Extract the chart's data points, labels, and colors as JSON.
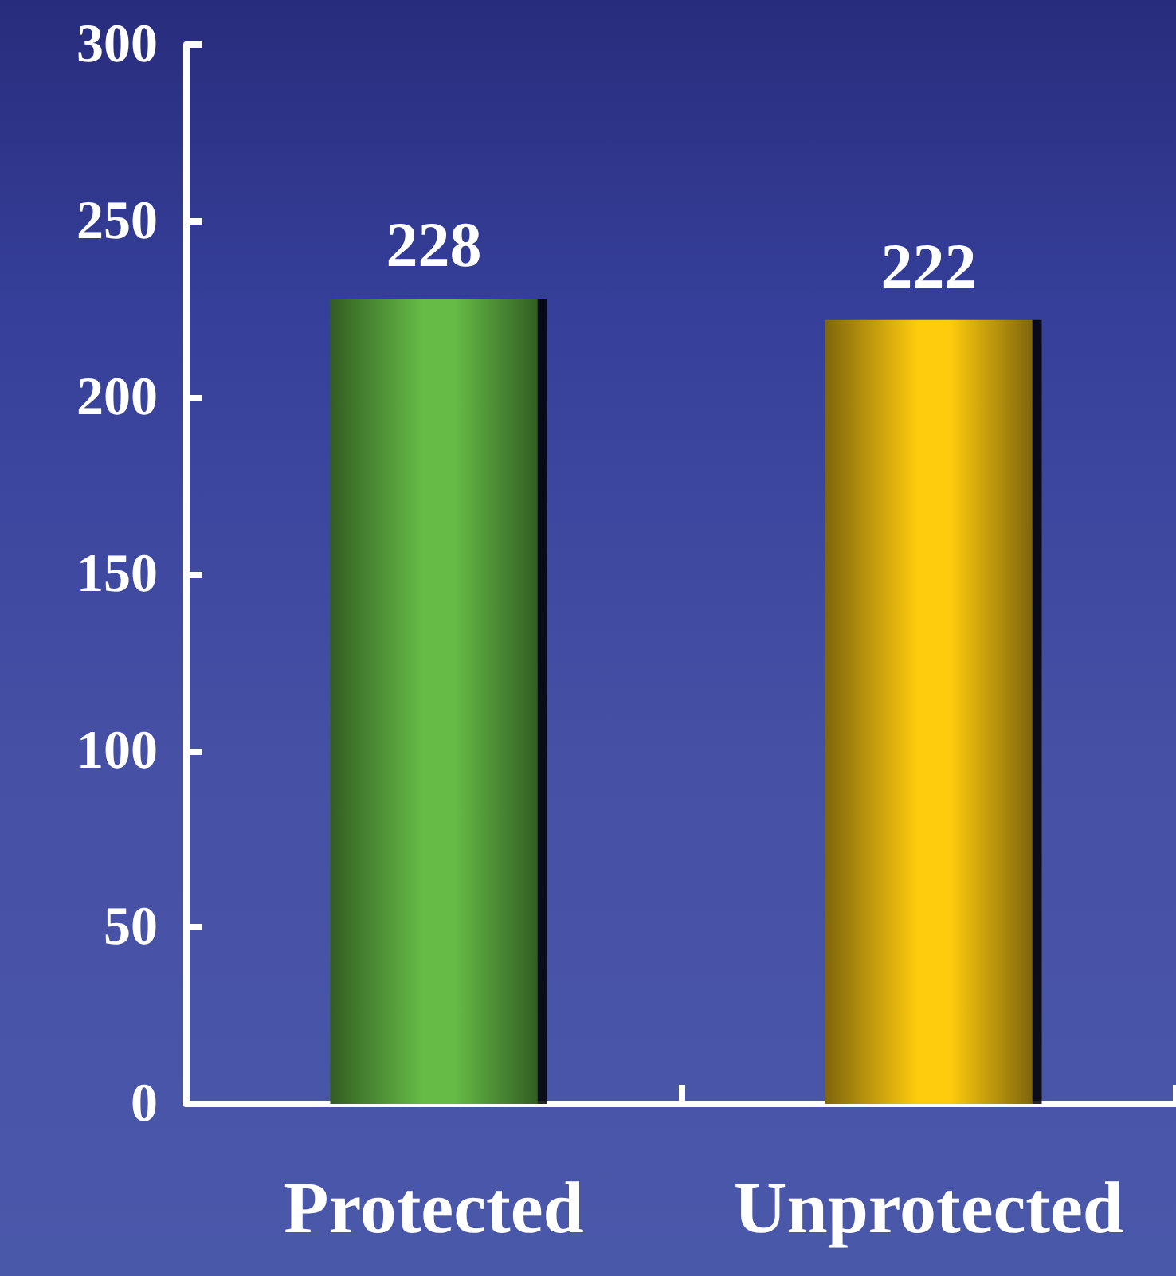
{
  "chart_data": {
    "type": "bar",
    "categories": [
      "Protected",
      "Unprotected"
    ],
    "values": [
      228,
      222
    ],
    "colors": [
      "#66bb46",
      "#ffcc10"
    ],
    "ylim": [
      0,
      300
    ],
    "yticks": [
      0,
      50,
      100,
      150,
      200,
      250,
      300
    ],
    "grid": false,
    "data_labels": true
  }
}
